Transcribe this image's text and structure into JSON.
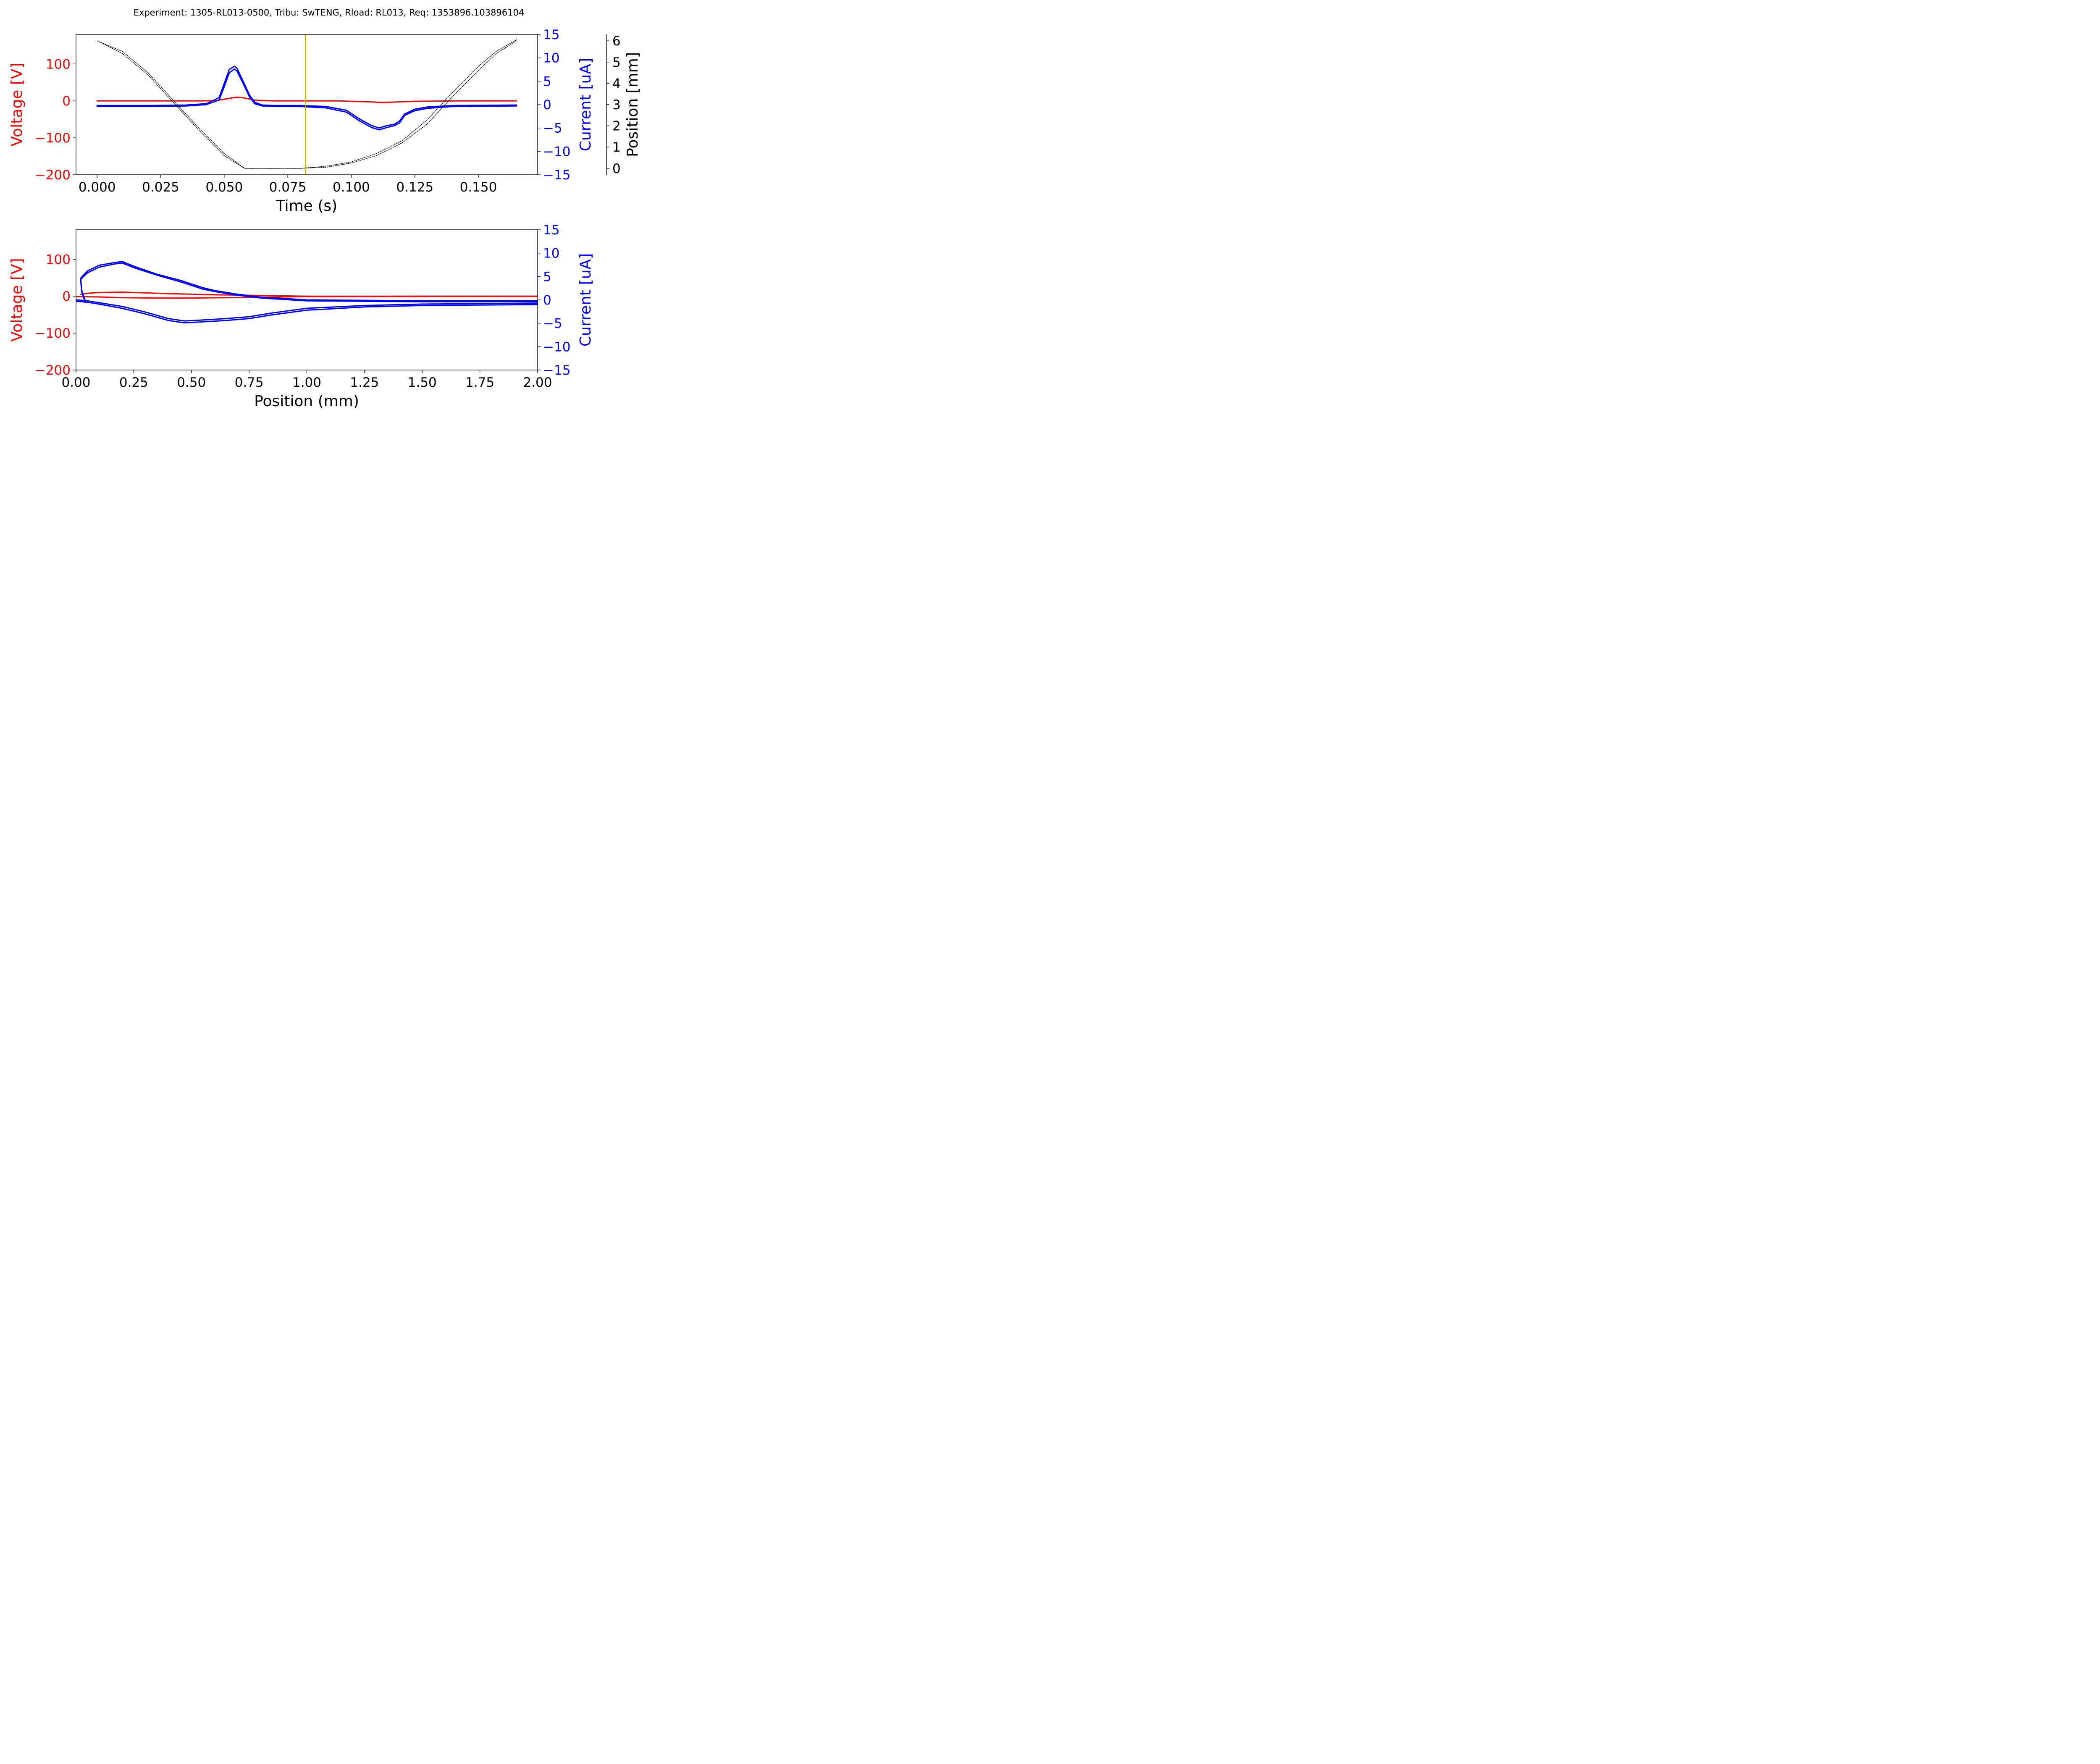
{
  "title": "Experiment: 1305-RL013-0500, Tribu: SwTENG, Rload: RL013, Req: 1353896.103896104",
  "colors": {
    "voltage": "#ff0000",
    "current": "#0000ff",
    "position": "#000000",
    "marker": "#bfbf00"
  },
  "chart_data": [
    {
      "type": "line",
      "xlabel": "Time (s)",
      "ylabel": "Voltage [V]",
      "y2label": "Current [uA]",
      "y3label": "Position [mm]",
      "xlim": [
        -0.0083,
        0.1733
      ],
      "ylim": [
        -200,
        180
      ],
      "y2lim": [
        -15,
        15
      ],
      "y3lim": [
        -0.3,
        6.3
      ],
      "xticks": [
        "0.000",
        "0.025",
        "0.050",
        "0.075",
        "0.100",
        "0.125",
        "0.150"
      ],
      "xtick_values": [
        0,
        0.025,
        0.05,
        0.075,
        0.1,
        0.125,
        0.15
      ],
      "yticks": [
        "−200",
        "−100",
        "0",
        "100"
      ],
      "ytick_values": [
        -200,
        -100,
        0,
        100
      ],
      "y2ticks": [
        "−15",
        "−10",
        "−5",
        "0",
        "5",
        "10",
        "15"
      ],
      "y2tick_values": [
        -15,
        -10,
        -5,
        0,
        5,
        10,
        15
      ],
      "y3ticks": [
        "0",
        "1",
        "2",
        "3",
        "4",
        "5",
        "6"
      ],
      "y3tick_values": [
        0,
        1,
        2,
        3,
        4,
        5,
        6
      ],
      "marker_x": 0.082,
      "series": [
        {
          "axis": "y",
          "color": "voltage",
          "x": [
            0,
            0.02,
            0.04,
            0.047,
            0.052,
            0.055,
            0.058,
            0.062,
            0.07,
            0.095,
            0.105,
            0.112,
            0.118,
            0.125,
            0.14,
            0.165
          ],
          "values": [
            0,
            0,
            0,
            1,
            7,
            10,
            8,
            2,
            0,
            0,
            -2,
            -4,
            -3,
            -1,
            0,
            0
          ]
        },
        {
          "axis": "y2",
          "color": "current",
          "x": [
            0,
            0.02,
            0.035,
            0.043,
            0.048,
            0.05,
            0.052,
            0.054,
            0.055,
            0.057,
            0.06,
            0.062,
            0.065,
            0.07,
            0.08,
            0.09,
            0.098,
            0.103,
            0.108,
            0.111,
            0.114,
            0.117,
            0.119,
            0.121,
            0.125,
            0.13,
            0.14,
            0.165
          ],
          "values": [
            -0.2,
            -0.2,
            -0.1,
            0.2,
            1.5,
            4.5,
            7.5,
            8.2,
            7.8,
            5.5,
            2.0,
            0.5,
            -0.1,
            -0.2,
            -0.2,
            -0.4,
            -1.2,
            -3.0,
            -4.5,
            -5.0,
            -4.5,
            -4.2,
            -3.5,
            -2.0,
            -1.0,
            -0.5,
            -0.2,
            -0.1
          ]
        },
        {
          "axis": "y2",
          "color": "current",
          "x": [
            0,
            0.02,
            0.035,
            0.043,
            0.048,
            0.05,
            0.052,
            0.054,
            0.055,
            0.057,
            0.06,
            0.062,
            0.065,
            0.07,
            0.08,
            0.09,
            0.098,
            0.103,
            0.108,
            0.111,
            0.114,
            0.117,
            0.119,
            0.121,
            0.125,
            0.13,
            0.14,
            0.165
          ],
          "values": [
            -0.4,
            -0.4,
            -0.3,
            0.0,
            1.0,
            3.8,
            6.8,
            7.6,
            7.2,
            5.0,
            1.6,
            0.2,
            -0.3,
            -0.4,
            -0.4,
            -0.7,
            -1.6,
            -3.4,
            -4.9,
            -5.4,
            -4.9,
            -4.5,
            -3.9,
            -2.3,
            -1.3,
            -0.8,
            -0.4,
            -0.3
          ]
        },
        {
          "axis": "y3",
          "color": "position",
          "dashed": true,
          "x": [
            0,
            0.01,
            0.02,
            0.03,
            0.04,
            0.05,
            0.058,
            0.07,
            0.08,
            0.09,
            0.1,
            0.11,
            0.12,
            0.13,
            0.14,
            0.15,
            0.157,
            0.165
          ],
          "values": [
            6.0,
            5.5,
            4.5,
            3.2,
            1.9,
            0.7,
            0.0,
            0.0,
            0.0,
            0.05,
            0.25,
            0.6,
            1.2,
            2.1,
            3.4,
            4.6,
            5.4,
            6.0
          ]
        },
        {
          "axis": "y3",
          "color": "position",
          "dashed": true,
          "x": [
            0,
            0.01,
            0.02,
            0.03,
            0.04,
            0.05,
            0.058,
            0.07,
            0.08,
            0.09,
            0.1,
            0.11,
            0.12,
            0.13,
            0.14,
            0.15,
            0.157,
            0.165
          ],
          "values": [
            6.0,
            5.4,
            4.4,
            3.1,
            1.8,
            0.6,
            0.0,
            0.0,
            0.0,
            0.1,
            0.3,
            0.7,
            1.3,
            2.3,
            3.6,
            4.8,
            5.5,
            6.05
          ]
        }
      ]
    },
    {
      "type": "line",
      "xlabel": "Position (mm)",
      "ylabel": "Voltage [V]",
      "y2label": "Current [uA]",
      "xlim": [
        0,
        2.0
      ],
      "ylim": [
        -200,
        180
      ],
      "y2lim": [
        -15,
        15
      ],
      "xticks": [
        "0.00",
        "0.25",
        "0.50",
        "0.75",
        "1.00",
        "1.25",
        "1.50",
        "1.75",
        "2.00"
      ],
      "xtick_values": [
        0,
        0.25,
        0.5,
        0.75,
        1.0,
        1.25,
        1.5,
        1.75,
        2.0
      ],
      "yticks": [
        "−200",
        "−100",
        "0",
        "100"
      ],
      "ytick_values": [
        -200,
        -100,
        0,
        100
      ],
      "y2ticks": [
        "−15",
        "−10",
        "−5",
        "0",
        "5",
        "10",
        "15"
      ],
      "y2tick_values": [
        -15,
        -10,
        -5,
        0,
        5,
        10,
        15
      ],
      "series": [
        {
          "axis": "y",
          "color": "voltage",
          "x": [
            2.0,
            1.5,
            1.0,
            0.8,
            0.6,
            0.4,
            0.2,
            0.1,
            0.05,
            0.02
          ],
          "values": [
            0,
            0,
            0,
            2,
            4,
            7,
            11,
            10,
            8,
            5
          ]
        },
        {
          "axis": "y",
          "color": "voltage",
          "x": [
            0.0,
            0.1,
            0.2,
            0.35,
            0.5,
            0.65,
            0.8,
            1.0,
            1.5,
            2.0
          ],
          "values": [
            -1,
            -2,
            -4,
            -5,
            -5,
            -4,
            -3,
            -1,
            0,
            0
          ]
        },
        {
          "axis": "y2",
          "color": "current",
          "x": [
            2.0,
            1.5,
            1.0,
            0.8,
            0.7,
            0.6,
            0.55,
            0.45,
            0.35,
            0.25,
            0.2,
            0.17,
            0.1,
            0.05,
            0.03,
            0.02,
            0.025,
            0.04
          ],
          "values": [
            -0.2,
            -0.2,
            0.0,
            0.6,
            1.2,
            2.0,
            2.6,
            4.2,
            5.5,
            7.2,
            8.2,
            8.0,
            7.4,
            6.2,
            5.2,
            4.6,
            2.0,
            -0.2
          ]
        },
        {
          "axis": "y2",
          "color": "current",
          "x": [
            2.0,
            1.5,
            1.0,
            0.8,
            0.7,
            0.6,
            0.55,
            0.45,
            0.35,
            0.25,
            0.2,
            0.17,
            0.1,
            0.05,
            0.03,
            0.02,
            0.025,
            0.04
          ],
          "values": [
            -0.4,
            -0.4,
            -0.2,
            0.4,
            1.0,
            1.8,
            2.3,
            3.9,
            5.3,
            6.9,
            7.9,
            7.7,
            7.0,
            5.8,
            4.9,
            4.3,
            1.7,
            -0.5
          ]
        },
        {
          "axis": "y2",
          "color": "current",
          "x": [
            0.0,
            0.05,
            0.1,
            0.2,
            0.3,
            0.4,
            0.47,
            0.55,
            0.65,
            0.75,
            0.85,
            1.0,
            1.25,
            1.5,
            1.75,
            2.0
          ],
          "values": [
            0.0,
            -0.2,
            -0.6,
            -1.4,
            -2.6,
            -4.0,
            -4.5,
            -4.3,
            -4.0,
            -3.6,
            -2.8,
            -1.8,
            -1.2,
            -0.9,
            -0.8,
            -0.7
          ]
        },
        {
          "axis": "y2",
          "color": "current",
          "x": [
            0.0,
            0.05,
            0.1,
            0.2,
            0.3,
            0.4,
            0.47,
            0.55,
            0.65,
            0.75,
            0.85,
            1.0,
            1.25,
            1.5,
            1.75,
            2.0
          ],
          "values": [
            -0.3,
            -0.5,
            -0.9,
            -1.8,
            -3.0,
            -4.4,
            -4.9,
            -4.7,
            -4.4,
            -4.0,
            -3.2,
            -2.2,
            -1.5,
            -1.2,
            -1.1,
            -1.0
          ]
        }
      ]
    }
  ]
}
